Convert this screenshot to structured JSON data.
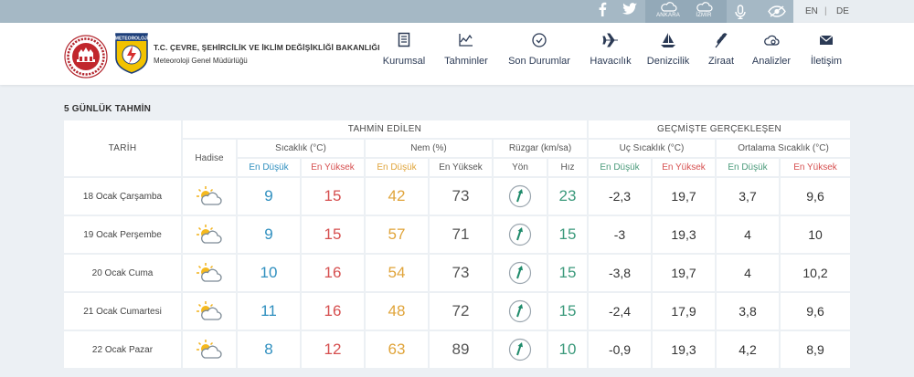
{
  "topbar": {
    "cities": [
      "ANKARA",
      "İZMİR"
    ],
    "lang_en": "EN",
    "lang_sep": "|",
    "lang_de": "DE"
  },
  "header": {
    "ministry": "T.C. ÇEVRE, ŞEHİRCİLİK VE İKLİM DEĞİŞİKLİĞİ BAKANLIĞI",
    "directorate": "Meteoroloji Genel Müdürlüğü",
    "logo_text": "METEOROLOJİ"
  },
  "nav": [
    {
      "label": "Kurumsal",
      "icon": "document-icon"
    },
    {
      "label": "Tahminler",
      "icon": "chart-icon"
    },
    {
      "label": "Son Durumlar",
      "icon": "clock-icon"
    },
    {
      "label": "Havacılık",
      "icon": "plane-icon"
    },
    {
      "label": "Denizcilik",
      "icon": "sailboat-icon"
    },
    {
      "label": "Ziraat",
      "icon": "wheat-icon"
    },
    {
      "label": "Analizler",
      "icon": "analysis-icon"
    },
    {
      "label": "İletişim",
      "icon": "envelope-icon"
    }
  ],
  "forecast": {
    "title": "5 GÜNLÜK TAHMİN",
    "group_predicted": "TAHMİN EDİLEN",
    "group_past": "GEÇMİŞTE GERÇEKLEŞEN",
    "col_date": "TARİH",
    "col_event": "Hadise",
    "col_temp": "Sıcaklık (°C)",
    "col_humidity": "Nem (%)",
    "col_wind": "Rüzgar (km/sa)",
    "col_extreme": "Uç Sıcaklık (°C)",
    "col_avg": "Ortalama Sıcaklık (°C)",
    "sub_min": "En Düşük",
    "sub_max": "En Yüksek",
    "sub_dir": "Yön",
    "sub_speed": "Hız",
    "rows": [
      {
        "date": "18 Ocak Çarşamba",
        "tmin": "9",
        "tmax": "15",
        "hmin": "42",
        "hmax": "73",
        "wind": "23",
        "pmin": "-2,3",
        "pmax": "19,7",
        "amin": "3,7",
        "amax": "9,6"
      },
      {
        "date": "19 Ocak Perşembe",
        "tmin": "9",
        "tmax": "15",
        "hmin": "57",
        "hmax": "71",
        "wind": "15",
        "pmin": "-3",
        "pmax": "19,3",
        "amin": "4",
        "amax": "10"
      },
      {
        "date": "20 Ocak Cuma",
        "tmin": "10",
        "tmax": "16",
        "hmin": "54",
        "hmax": "73",
        "wind": "15",
        "pmin": "-3,8",
        "pmax": "19,7",
        "amin": "4",
        "amax": "10,2"
      },
      {
        "date": "21 Ocak Cumartesi",
        "tmin": "11",
        "tmax": "16",
        "hmin": "48",
        "hmax": "72",
        "wind": "15",
        "pmin": "-2,4",
        "pmax": "17,9",
        "amin": "3,8",
        "amax": "9,6"
      },
      {
        "date": "22 Ocak Pazar",
        "tmin": "8",
        "tmax": "12",
        "hmin": "63",
        "hmax": "89",
        "wind": "10",
        "pmin": "-0,9",
        "pmax": "19,3",
        "amin": "4,2",
        "amax": "8,9"
      }
    ]
  }
}
